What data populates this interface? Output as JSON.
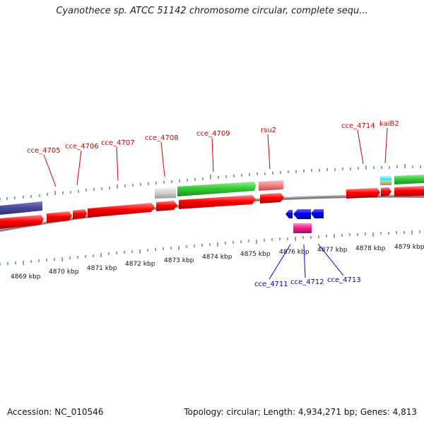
{
  "title": "Cyanothece sp. ATCC 51142 chromosome circular, complete sequ...",
  "footer": {
    "accession": "Accession: NC_010546",
    "stats": "Topology: circular; Length: 4,934,271 bp; Genes: 4,813"
  },
  "colors": {
    "cds": "#ff0000",
    "rna": "#33cc33",
    "pseudo": "#cccccc",
    "blue": "#0000ff",
    "navy": "#4b4b9f",
    "pink": "#ee1f8f",
    "salmon": "#f08080",
    "cyan": "#22dddd",
    "olive": "#c8b070",
    "backbone": "#808080",
    "tick": "#006600"
  },
  "kbp_labels": [
    "4869 kbp",
    "4870 kbp",
    "4871 kbp",
    "4872 kbp",
    "4873 kbp",
    "4874 kbp",
    "4875 kbp",
    "4876 kbp",
    "4877 kbp",
    "4878 kbp",
    "4879 kbp"
  ],
  "gene_labels_top": [
    "cce_4705",
    "cce_4706",
    "cce_4707",
    "cce_4708",
    "cce_4709",
    "rsu2",
    "cce_4714",
    "kaiB2"
  ],
  "gene_labels_bottom": [
    "cce_4711",
    "cce_4712",
    "cce_4713"
  ]
}
